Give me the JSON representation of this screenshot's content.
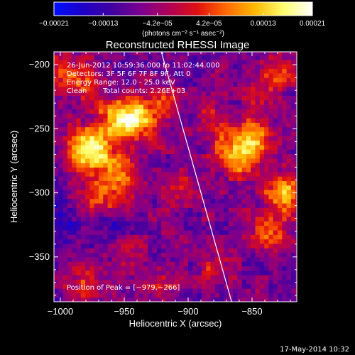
{
  "chart_data": {
    "type": "heatmap",
    "title": "Reconstructed RHESSI Image",
    "xlabel": "Heliocentric X (arcsec)",
    "ylabel": "Heliocentric Y (arcsec)",
    "xlim": [
      -1005,
      -815
    ],
    "ylim": [
      -385,
      -190
    ],
    "x_ticks": [
      -1000,
      -950,
      -900,
      -850
    ],
    "x_tick_labels": [
      "−1000",
      "−950",
      "−900",
      "−850"
    ],
    "y_ticks": [
      -200,
      -250,
      -300,
      -350
    ],
    "y_tick_labels": [
      "−200",
      "−250",
      "−300",
      "−350"
    ],
    "colorbar": {
      "range": [
        -0.00021,
        0.00021
      ],
      "ticks": [
        -0.00021,
        -0.00013,
        -4.2e-05,
        4.2e-05,
        0.00013,
        0.00021
      ],
      "tick_labels": [
        "−0.00021",
        "−0.00013",
        "−4.2e−05",
        "4.2e−05",
        "0.00013",
        "0.00021"
      ],
      "units": "(photons cm⁻² s⁻¹ asec⁻²)",
      "colormap": [
        "#0010ff",
        "#1d00c8",
        "#4000a0",
        "#7a0090",
        "#b00058",
        "#e01010",
        "#ff6a00",
        "#ffb800",
        "#ffff70",
        "#ffffff"
      ]
    },
    "annotations": {
      "time_range": "26-Jun-2012 10:59:36.000 to 11:02:44.000",
      "detectors": "Detectors: 3F 5F 6F 7F 8F 9F, Att 0",
      "energy_range": "Energy Range: 12.0 - 25.0 keV",
      "algorithm": "Clean",
      "total_counts": "Total counts: 2.26E+03",
      "peak_position": "Position of Peak = [−979,−266]"
    },
    "limb_line": [
      [
        -921,
        -190
      ],
      [
        -866,
        -385
      ]
    ],
    "sources": [
      {
        "x": -979,
        "y": -266,
        "amp": 1.0,
        "sigma": 12
      },
      {
        "x": -955,
        "y": -243,
        "amp": 0.75,
        "sigma": 11
      },
      {
        "x": -940,
        "y": -238,
        "amp": 0.6,
        "sigma": 9
      },
      {
        "x": -980,
        "y": -212,
        "amp": 0.45,
        "sigma": 10
      },
      {
        "x": -953,
        "y": -285,
        "amp": 0.55,
        "sigma": 12
      },
      {
        "x": -970,
        "y": -305,
        "amp": 0.4,
        "sigma": 10
      },
      {
        "x": -1000,
        "y": -205,
        "amp": 0.35,
        "sigma": 9
      },
      {
        "x": -930,
        "y": -255,
        "amp": 0.35,
        "sigma": 9
      },
      {
        "x": -918,
        "y": -230,
        "amp": 0.45,
        "sigma": 8
      },
      {
        "x": -905,
        "y": -295,
        "amp": 0.35,
        "sigma": 9
      },
      {
        "x": -880,
        "y": -245,
        "amp": 0.4,
        "sigma": 10
      },
      {
        "x": -860,
        "y": -270,
        "amp": 0.8,
        "sigma": 12
      },
      {
        "x": -848,
        "y": -255,
        "amp": 0.55,
        "sigma": 9
      },
      {
        "x": -826,
        "y": -300,
        "amp": 0.75,
        "sigma": 10
      },
      {
        "x": -835,
        "y": -330,
        "amp": 0.5,
        "sigma": 10
      },
      {
        "x": -830,
        "y": -205,
        "amp": 0.45,
        "sigma": 10
      },
      {
        "x": -845,
        "y": -225,
        "amp": 0.35,
        "sigma": 8
      },
      {
        "x": -985,
        "y": -370,
        "amp": 0.35,
        "sigma": 10
      },
      {
        "x": -950,
        "y": -345,
        "amp": 0.3,
        "sigma": 9
      },
      {
        "x": -880,
        "y": -360,
        "amp": 0.3,
        "sigma": 9
      },
      {
        "x": -920,
        "y": -375,
        "amp": 0.25,
        "sigma": 9
      },
      {
        "x": -1000,
        "y": -320,
        "amp": -0.35,
        "sigma": 10
      },
      {
        "x": -960,
        "y": -325,
        "amp": -0.2,
        "sigma": 9
      }
    ]
  },
  "footer": {
    "date_stamp": "17-May-2014 10:32"
  }
}
